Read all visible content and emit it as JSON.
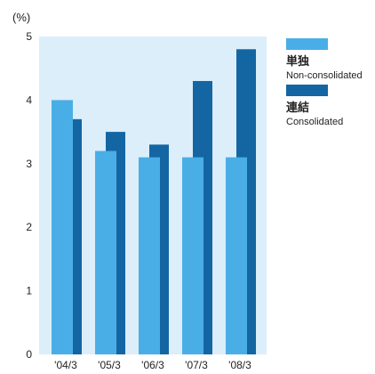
{
  "chart_data": {
    "type": "bar",
    "unit_label": "(%)",
    "categories": [
      "'04/3",
      "'05/3",
      "'06/3",
      "'07/3",
      "'08/3"
    ],
    "y_ticks": [
      "0",
      "1",
      "2",
      "3",
      "4",
      "5"
    ],
    "ylim": [
      0,
      5
    ],
    "grid": false,
    "legend_position": "right",
    "series": [
      {
        "name": "単独",
        "name_en": "Non-consolidated",
        "color": "#4aaee6",
        "values": [
          4.0,
          3.2,
          3.1,
          3.1,
          3.1
        ]
      },
      {
        "name": "連結",
        "name_en": "Consolidated",
        "color": "#1466a3",
        "values": [
          3.7,
          3.5,
          3.3,
          4.3,
          4.8
        ]
      }
    ],
    "plot_background": "#dbeefa"
  }
}
